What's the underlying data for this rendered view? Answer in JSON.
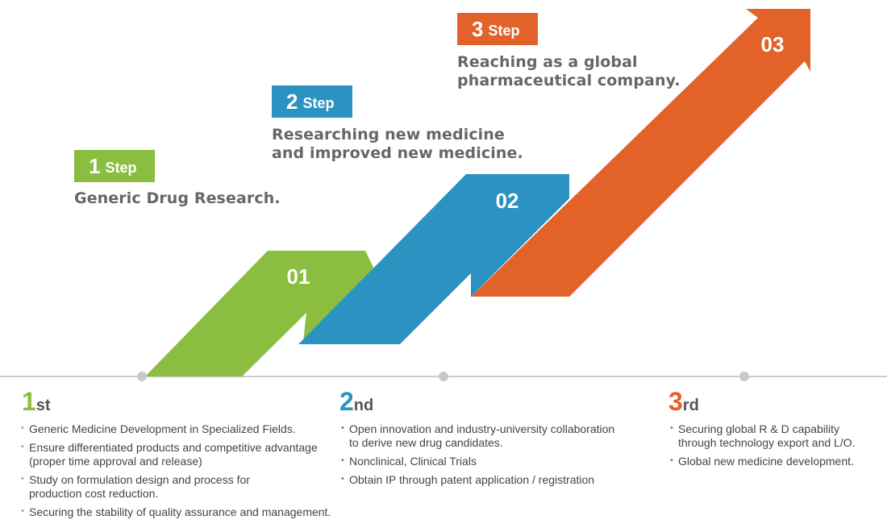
{
  "colors": {
    "step1": "#8bbd41",
    "step2": "#2a93c2",
    "step3": "#e2622a",
    "timeline": "#cccccc",
    "dot": "#c9c9c9"
  },
  "steps": [
    {
      "number": "1",
      "word": "Step",
      "description": "Generic Drug Research."
    },
    {
      "number": "2",
      "word": "Step",
      "description": "Researching new medicine\nand improved new medicine."
    },
    {
      "number": "3",
      "word": "Step",
      "description": "Reaching as a global\npharmaceutical company."
    }
  ],
  "arrows": [
    {
      "label": "01"
    },
    {
      "label": "02"
    },
    {
      "label": "03"
    }
  ],
  "stages": [
    {
      "number": "1",
      "suffix": "st",
      "items": [
        "Generic Medicine Development in Specialized Fields.",
        "Ensure differentiated products and competitive advantage\n(proper time approval and release)",
        "Study on formulation design and process for\nproduction cost reduction.",
        "Securing the stability of quality assurance and management."
      ]
    },
    {
      "number": "2",
      "suffix": "nd",
      "items": [
        "Open innovation and industry-university collaboration\nto derive new drug candidates.",
        "Nonclinical, Clinical Trials",
        "Obtain IP through patent application / registration"
      ]
    },
    {
      "number": "3",
      "suffix": "rd",
      "items": [
        "Securing global R & D capability\nthrough technology export and L/O.",
        "Global new medicine development."
      ]
    }
  ]
}
